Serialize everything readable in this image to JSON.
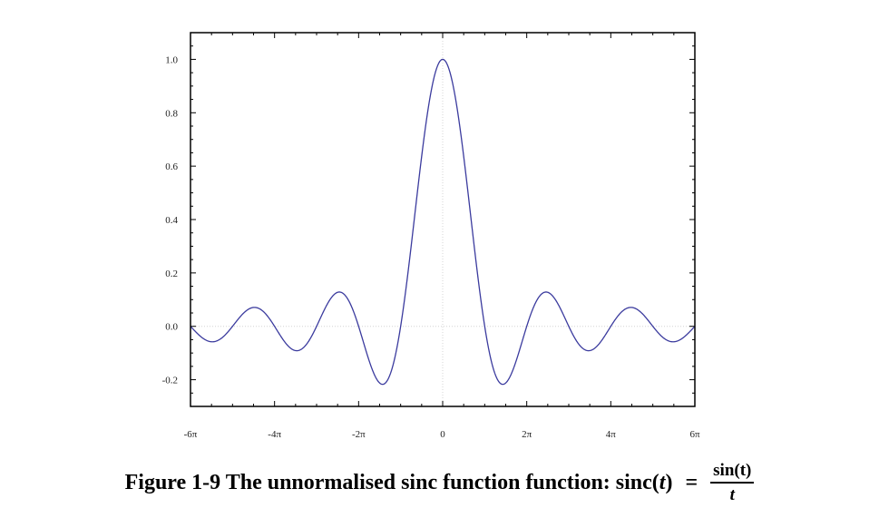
{
  "chart_data": {
    "type": "line",
    "function": "sin(t)/t",
    "xlim": [
      -18.8496,
      18.8496
    ],
    "ylim": [
      -0.3,
      1.1
    ],
    "x_ticks": [
      {
        "value": -18.8496,
        "label": "-6π"
      },
      {
        "value": -12.5664,
        "label": "-4π"
      },
      {
        "value": -6.2832,
        "label": "-2π"
      },
      {
        "value": 0,
        "label": "0"
      },
      {
        "value": 6.2832,
        "label": "2π"
      },
      {
        "value": 12.5664,
        "label": "4π"
      },
      {
        "value": 18.8496,
        "label": "6π"
      }
    ],
    "y_ticks": [
      {
        "value": -0.2,
        "label": "-0.2"
      },
      {
        "value": 0.0,
        "label": "0.0"
      },
      {
        "value": 0.2,
        "label": "0.2"
      },
      {
        "value": 0.4,
        "label": "0.4"
      },
      {
        "value": 0.6,
        "label": "0.6"
      },
      {
        "value": 0.8,
        "label": "0.8"
      },
      {
        "value": 1.0,
        "label": "1.0"
      }
    ],
    "key_points": [
      {
        "x": 0,
        "y": 1.0
      },
      {
        "x": -4.4934,
        "y": -0.2172
      },
      {
        "x": 4.4934,
        "y": -0.2172
      },
      {
        "x": -7.7253,
        "y": 0.1284
      },
      {
        "x": 7.7253,
        "y": 0.1284
      },
      {
        "x": -10.9041,
        "y": -0.0913
      },
      {
        "x": 10.9041,
        "y": -0.0913
      },
      {
        "x": -14.0662,
        "y": 0.0709
      },
      {
        "x": 14.0662,
        "y": 0.0709
      },
      {
        "x": -17.2208,
        "y": -0.058
      },
      {
        "x": 17.2208,
        "y": -0.058
      }
    ],
    "line_color": "#3b3b9e",
    "grid": false,
    "zero_lines": true,
    "xlabel": "",
    "ylabel": ""
  },
  "caption": {
    "text": "Figure 1-9 The unnormalised sinc function function: sinc(",
    "var": "t",
    "close": ")",
    "equals": "=",
    "numerator": "sin(t)",
    "denominator": "t"
  }
}
